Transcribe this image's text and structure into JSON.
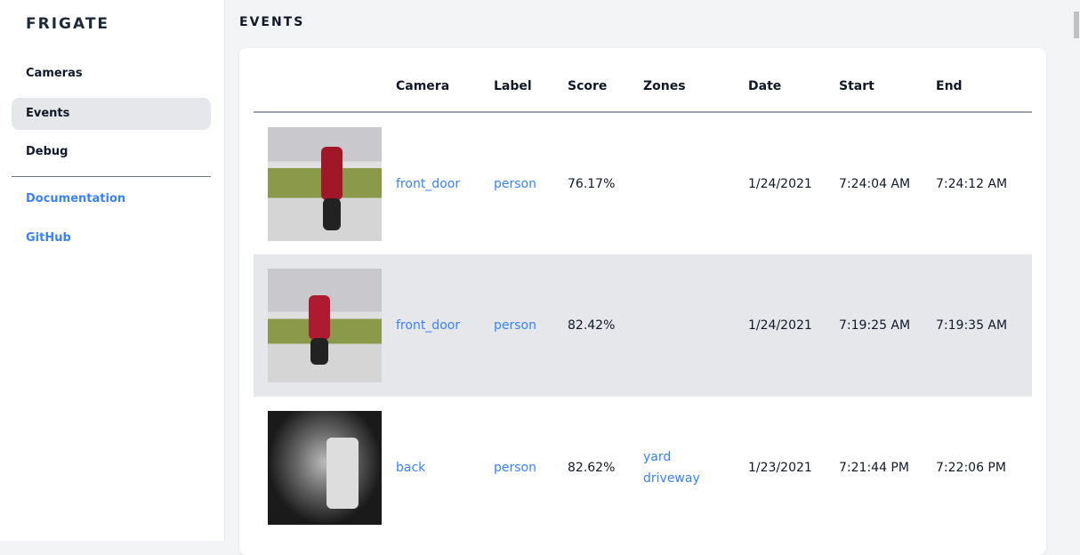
{
  "sidebar": {
    "brand": "FRIGATE",
    "items": [
      {
        "label": "Cameras"
      },
      {
        "label": "Events",
        "active": true
      },
      {
        "label": "Debug"
      }
    ],
    "links": [
      {
        "label": "Documentation"
      },
      {
        "label": "GitHub"
      }
    ]
  },
  "main": {
    "title": "EVENTS",
    "columns": [
      "",
      "Camera",
      "Label",
      "Score",
      "Zones",
      "Date",
      "Start",
      "End"
    ],
    "rows": [
      {
        "camera": "front_door",
        "label": "person",
        "score": "76.17%",
        "zones": [
          "",
          ""
        ],
        "date": "1/24/2021",
        "start": "7:24:04 AM",
        "end": "7:24:12 AM"
      },
      {
        "camera": "front_door",
        "label": "person",
        "score": "82.42%",
        "zones": [
          "",
          ""
        ],
        "date": "1/24/2021",
        "start": "7:19:25 AM",
        "end": "7:19:35 AM"
      },
      {
        "camera": "back",
        "label": "person",
        "score": "82.62%",
        "zones": [
          "yard",
          "driveway"
        ],
        "date": "1/23/2021",
        "start": "7:21:44 PM",
        "end": "7:22:06 PM"
      }
    ]
  },
  "colors": {
    "link": "#3b82f6",
    "active_bg": "#e5e7eb"
  }
}
